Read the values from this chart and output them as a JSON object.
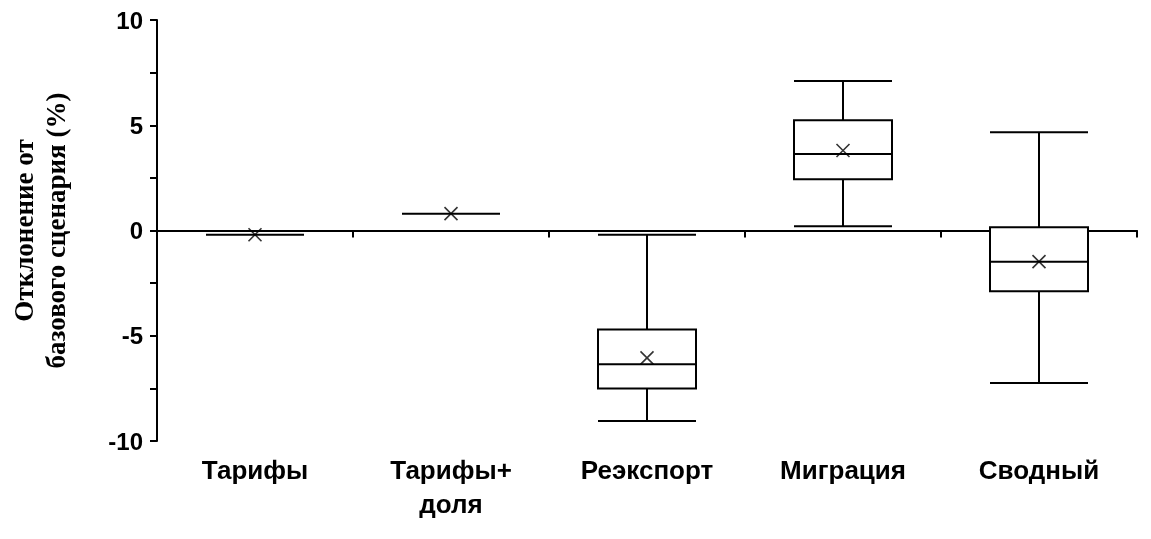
{
  "chart_data": {
    "type": "box",
    "ylabel": "Отклонение от\nбазового сценария (%)",
    "categories": [
      "Тарифы",
      "Тарифы+\nдоля",
      "Реэкспорт",
      "Миграция",
      "Сводный"
    ],
    "color": "#000000",
    "boxes": [
      {
        "low": -0.2,
        "q1": -0.2,
        "median": -0.2,
        "q3": -0.2,
        "high": -0.2,
        "mean": -0.2
      },
      {
        "low": 0.8,
        "q1": 0.8,
        "median": 0.8,
        "q3": 0.8,
        "high": 0.8,
        "mean": 0.8
      },
      {
        "low": -9.05,
        "q1": -7.5,
        "median": -6.35,
        "q3": -4.7,
        "high": -0.2,
        "mean": -6.05
      },
      {
        "low": 0.2,
        "q1": 2.43,
        "median": 3.64,
        "q3": 5.24,
        "high": 7.1,
        "mean": 3.8
      },
      {
        "low": -7.24,
        "q1": -2.89,
        "median": -1.48,
        "q3": 0.16,
        "high": 4.67,
        "mean": -1.48
      }
    ],
    "marker": "cross",
    "ylim": [
      -10,
      10
    ],
    "yticks": [
      -10,
      {
        "value": -7.5,
        "label": null
      },
      -5,
      {
        "value": -2.5,
        "label": null
      },
      0,
      {
        "value": 2.5,
        "label": null
      },
      5,
      {
        "value": 7.5,
        "label": null
      },
      10
    ]
  }
}
